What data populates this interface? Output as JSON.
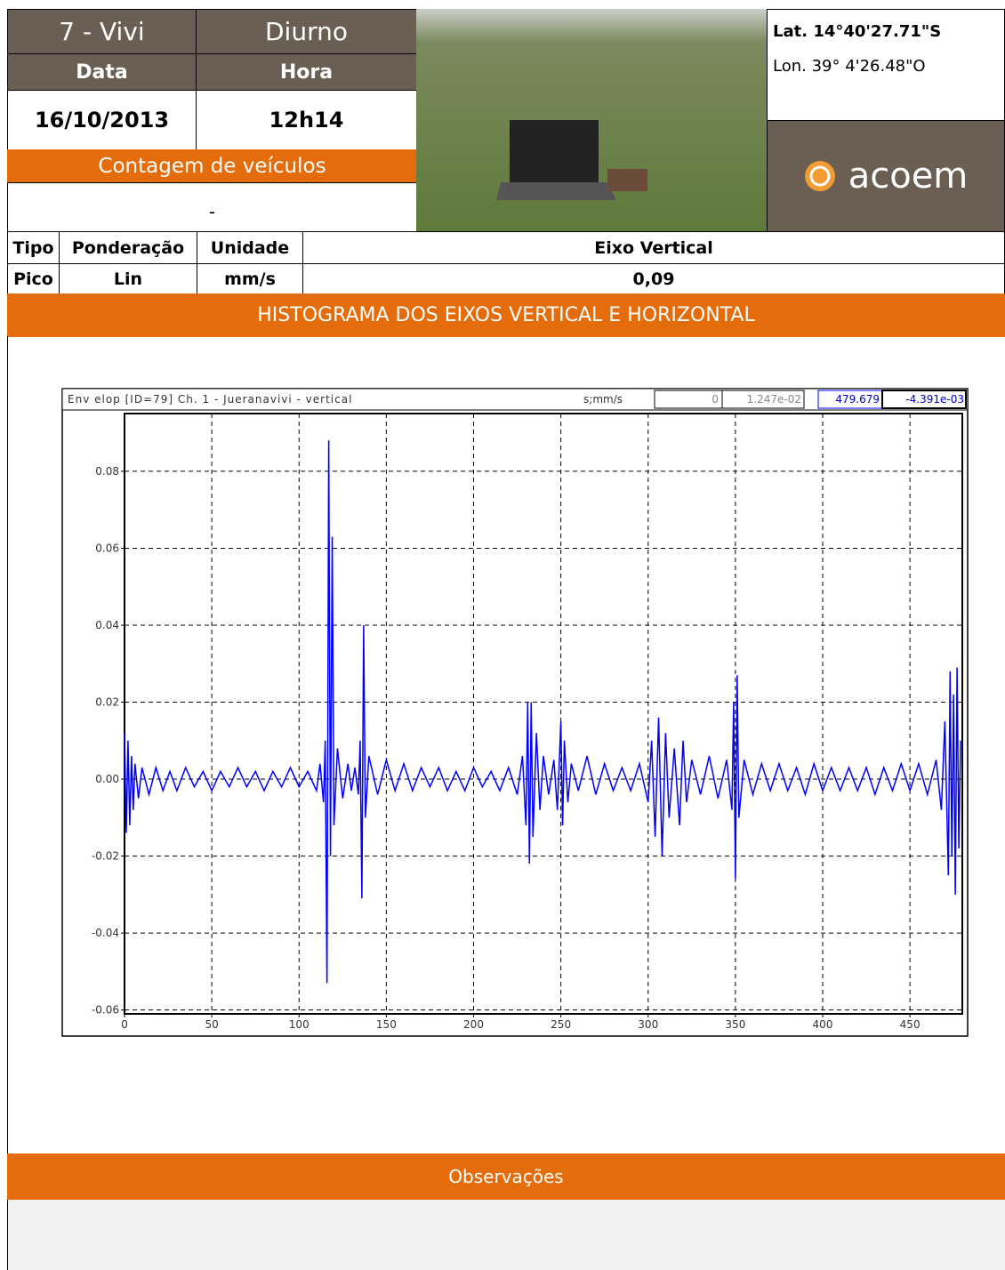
{
  "header": {
    "point": "7 - Vivi",
    "period": "Diurno",
    "date_label": "Data",
    "time_label": "Hora",
    "date": "16/10/2013",
    "time": "12h14",
    "activity": "Contagem de veículos",
    "activity_value": "-",
    "lat": "Lat. 14°40'27.71\"S",
    "lon": "Lon. 39° 4'26.48\"O",
    "logo": "acoem"
  },
  "table": {
    "header": [
      "Tipo",
      "Ponderação",
      "Unidade",
      "Eixo Vertical"
    ],
    "rows": [
      [
        "Pico",
        "Lin",
        "mm/s",
        "0,09"
      ]
    ]
  },
  "section_title": "HISTOGRAMA DOS EIXOS VERTICAL E HORIZONTAL",
  "chart_data": {
    "type": "line",
    "title": "Env elop [ID=79]  Ch. 1  - Jueranavivi - vertical",
    "units": "s;mm/s",
    "readouts": [
      "0",
      "1.247e-02",
      "479.679",
      "-4.391e-03"
    ],
    "color": "#0000ff",
    "grid": true,
    "xlim": [
      0,
      480
    ],
    "ylim": [
      -0.061,
      0.095
    ],
    "xticks": [
      0,
      50,
      100,
      150,
      200,
      250,
      300,
      350,
      400,
      450
    ],
    "yticks": [
      -0.06,
      -0.04,
      -0.02,
      {
        "value": 0,
        "label": "0.00"
      },
      0.02,
      0.04,
      0.06,
      0.08
    ],
    "x": [
      0,
      1,
      2,
      3,
      4,
      5,
      6,
      8,
      10,
      14,
      18,
      22,
      26,
      30,
      35,
      40,
      45,
      50,
      55,
      60,
      65,
      70,
      75,
      80,
      85,
      90,
      95,
      100,
      105,
      110,
      112,
      114,
      115,
      116,
      117,
      118,
      119,
      120,
      122,
      125,
      128,
      130,
      132,
      134,
      135,
      136,
      137,
      138,
      140,
      145,
      150,
      155,
      160,
      165,
      170,
      175,
      180,
      185,
      190,
      195,
      200,
      205,
      210,
      215,
      220,
      225,
      228,
      230,
      231,
      232,
      233,
      234,
      236,
      238,
      240,
      243,
      246,
      248,
      250,
      251,
      252,
      254,
      256,
      260,
      265,
      270,
      275,
      280,
      285,
      290,
      295,
      300,
      302,
      304,
      306,
      308,
      310,
      312,
      315,
      318,
      320,
      322,
      325,
      330,
      335,
      340,
      345,
      348,
      349,
      350,
      351,
      352,
      355,
      360,
      365,
      370,
      375,
      380,
      385,
      390,
      395,
      400,
      405,
      410,
      415,
      420,
      425,
      430,
      435,
      440,
      445,
      450,
      455,
      460,
      465,
      468,
      470,
      472,
      473,
      474,
      475,
      476,
      477,
      478,
      479
    ],
    "values": [
      0.012,
      -0.014,
      0.01,
      -0.012,
      0.006,
      -0.008,
      0.004,
      -0.005,
      0.003,
      -0.004,
      0.003,
      -0.003,
      0.002,
      -0.003,
      0.003,
      -0.002,
      0.002,
      -0.003,
      0.002,
      -0.002,
      0.003,
      -0.002,
      0.002,
      -0.003,
      0.002,
      -0.002,
      0.003,
      -0.002,
      0.002,
      -0.003,
      0.004,
      -0.006,
      0.01,
      -0.053,
      0.088,
      -0.02,
      0.063,
      -0.012,
      0.008,
      -0.005,
      0.004,
      -0.003,
      0.003,
      -0.004,
      0.01,
      -0.031,
      0.04,
      -0.01,
      0.006,
      -0.004,
      0.005,
      -0.003,
      0.004,
      -0.003,
      0.003,
      -0.002,
      0.003,
      -0.003,
      0.002,
      -0.003,
      0.003,
      -0.002,
      0.002,
      -0.003,
      0.003,
      -0.004,
      0.006,
      -0.012,
      0.02,
      -0.022,
      0.02,
      -0.015,
      0.012,
      -0.008,
      0.006,
      -0.004,
      0.005,
      -0.008,
      0.015,
      -0.012,
      0.01,
      -0.006,
      0.004,
      -0.003,
      0.006,
      -0.004,
      0.004,
      -0.003,
      0.003,
      -0.003,
      0.004,
      -0.006,
      0.01,
      -0.015,
      0.016,
      -0.02,
      0.012,
      -0.01,
      0.008,
      -0.012,
      0.01,
      -0.006,
      0.005,
      -0.004,
      0.006,
      -0.005,
      0.005,
      -0.008,
      0.02,
      -0.026,
      0.027,
      -0.01,
      0.005,
      -0.004,
      0.004,
      -0.003,
      0.004,
      -0.003,
      0.003,
      -0.004,
      0.004,
      -0.003,
      0.003,
      -0.003,
      0.003,
      -0.003,
      0.003,
      -0.004,
      0.003,
      -0.003,
      0.004,
      -0.003,
      0.004,
      -0.004,
      0.005,
      -0.008,
      0.015,
      -0.025,
      0.028,
      -0.02,
      0.022,
      -0.03,
      0.029,
      -0.018,
      0.01
    ]
  },
  "footer": {
    "title": "Observações"
  }
}
